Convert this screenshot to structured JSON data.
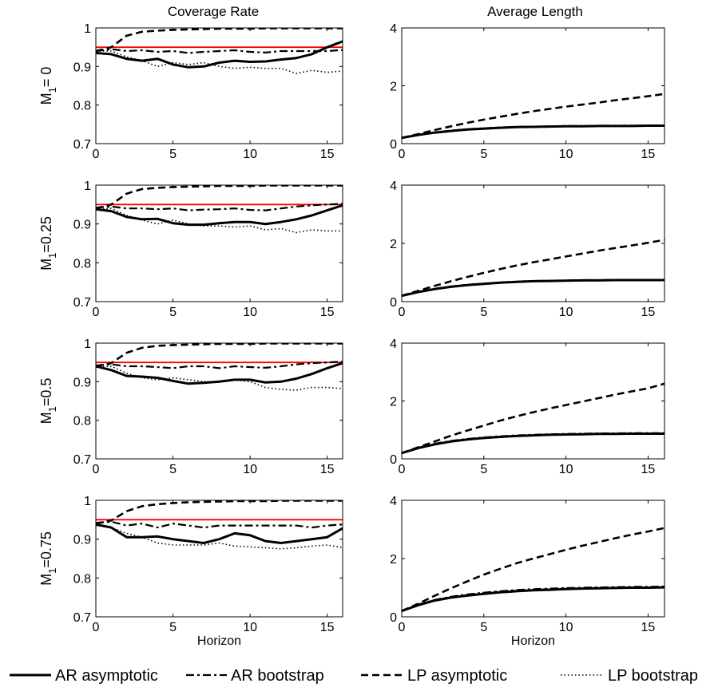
{
  "column_titles": [
    "Coverage Rate",
    "Average Length"
  ],
  "row_labels": [
    {
      "main": "M",
      "sub": "1",
      "rest": "= 0"
    },
    {
      "main": "M",
      "sub": "1",
      "rest": "=0.25"
    },
    {
      "main": "M",
      "sub": "1",
      "rest": "=0.5"
    },
    {
      "main": "M",
      "sub": "1",
      "rest": "=0.75"
    }
  ],
  "xlabel": "Horizon",
  "legend": {
    "placement": "bottom",
    "entries": [
      {
        "label": "AR asymptotic",
        "style": "solid"
      },
      {
        "label": "AR bootstrap",
        "style": "dashdot"
      },
      {
        "label": "LP asymptotic",
        "style": "dashed"
      },
      {
        "label": "LP bootstrap",
        "style": "dotted"
      }
    ]
  },
  "colors": {
    "nominal_line": "#ff0000",
    "series": "#000000"
  },
  "chart_data": [
    {
      "type": "line",
      "row": 0,
      "col": 0,
      "title": "Coverage Rate",
      "ylabel": "M1= 0",
      "xlabel": "",
      "xlim": [
        0,
        16
      ],
      "ylim": [
        0.7,
        1
      ],
      "xticks": [
        0,
        5,
        10,
        15
      ],
      "yticks": [
        0.7,
        0.8,
        0.9,
        1
      ],
      "xtick_labels": [
        "0",
        "5",
        "10",
        "15"
      ],
      "ytick_labels": [
        "0.7",
        "0.8",
        "0.9",
        "1"
      ],
      "hline": 0.95,
      "x": [
        0,
        1,
        2,
        3,
        4,
        5,
        6,
        7,
        8,
        9,
        10,
        11,
        12,
        13,
        14,
        15,
        16
      ],
      "series": [
        {
          "name": "AR asymptotic",
          "values": [
            0.935,
            0.932,
            0.92,
            0.915,
            0.92,
            0.905,
            0.898,
            0.9,
            0.91,
            0.915,
            0.912,
            0.913,
            0.918,
            0.922,
            0.932,
            0.95,
            0.965
          ]
        },
        {
          "name": "AR bootstrap",
          "values": [
            0.94,
            0.945,
            0.94,
            0.942,
            0.938,
            0.94,
            0.935,
            0.938,
            0.94,
            0.942,
            0.938,
            0.936,
            0.94,
            0.94,
            0.94,
            0.94,
            0.943
          ]
        },
        {
          "name": "LP asymptotic",
          "values": [
            0.94,
            0.95,
            0.98,
            0.99,
            0.993,
            0.995,
            0.996,
            0.997,
            0.998,
            0.998,
            0.998,
            0.999,
            0.999,
            0.999,
            0.999,
            0.999,
            0.999
          ]
        },
        {
          "name": "LP bootstrap",
          "values": [
            0.94,
            0.94,
            0.925,
            0.915,
            0.9,
            0.91,
            0.905,
            0.91,
            0.9,
            0.895,
            0.898,
            0.895,
            0.895,
            0.882,
            0.89,
            0.885,
            0.888
          ]
        }
      ]
    },
    {
      "type": "line",
      "row": 0,
      "col": 1,
      "title": "Average Length",
      "ylabel": "",
      "xlabel": "",
      "xlim": [
        0,
        16
      ],
      "ylim": [
        0,
        4
      ],
      "xticks": [
        0,
        5,
        10,
        15
      ],
      "yticks": [
        0,
        2,
        4
      ],
      "xtick_labels": [
        "0",
        "5",
        "10",
        "15"
      ],
      "ytick_labels": [
        "0",
        "2",
        "4"
      ],
      "x": [
        0,
        1,
        2,
        3,
        4,
        5,
        6,
        7,
        8,
        9,
        10,
        11,
        12,
        13,
        14,
        15,
        16
      ],
      "series": [
        {
          "name": "AR asymptotic",
          "values": [
            0.2,
            0.3,
            0.38,
            0.44,
            0.49,
            0.52,
            0.55,
            0.57,
            0.58,
            0.59,
            0.6,
            0.6,
            0.61,
            0.61,
            0.61,
            0.62,
            0.62
          ]
        },
        {
          "name": "AR bootstrap",
          "values": [
            0.2,
            0.31,
            0.39,
            0.45,
            0.5,
            0.53,
            0.56,
            0.58,
            0.59,
            0.6,
            0.61,
            0.61,
            0.62,
            0.62,
            0.62,
            0.63,
            0.63
          ]
        },
        {
          "name": "LP asymptotic",
          "values": [
            0.2,
            0.33,
            0.47,
            0.6,
            0.72,
            0.83,
            0.93,
            1.03,
            1.12,
            1.2,
            1.28,
            1.35,
            1.42,
            1.5,
            1.57,
            1.64,
            1.72
          ]
        },
        {
          "name": "LP bootstrap",
          "values": [
            0.2,
            0.31,
            0.4,
            0.46,
            0.51,
            0.54,
            0.57,
            0.59,
            0.6,
            0.61,
            0.61,
            0.62,
            0.62,
            0.62,
            0.63,
            0.63,
            0.63
          ]
        }
      ]
    },
    {
      "type": "line",
      "row": 1,
      "col": 0,
      "title": "",
      "ylabel": "M1=0.25",
      "xlabel": "",
      "xlim": [
        0,
        16
      ],
      "ylim": [
        0.7,
        1
      ],
      "xticks": [
        0,
        5,
        10,
        15
      ],
      "yticks": [
        0.7,
        0.8,
        0.9,
        1
      ],
      "xtick_labels": [
        "0",
        "5",
        "10",
        "15"
      ],
      "ytick_labels": [
        "0.7",
        "0.8",
        "0.9",
        "1"
      ],
      "hline": 0.95,
      "x": [
        0,
        1,
        2,
        3,
        4,
        5,
        6,
        7,
        8,
        9,
        10,
        11,
        12,
        13,
        14,
        15,
        16
      ],
      "series": [
        {
          "name": "AR asymptotic",
          "values": [
            0.938,
            0.933,
            0.918,
            0.912,
            0.913,
            0.902,
            0.898,
            0.898,
            0.902,
            0.905,
            0.905,
            0.9,
            0.905,
            0.912,
            0.922,
            0.935,
            0.948
          ]
        },
        {
          "name": "AR bootstrap",
          "values": [
            0.942,
            0.945,
            0.94,
            0.94,
            0.938,
            0.94,
            0.935,
            0.937,
            0.938,
            0.94,
            0.936,
            0.935,
            0.94,
            0.945,
            0.948,
            0.95,
            0.952
          ]
        },
        {
          "name": "LP asymptotic",
          "values": [
            0.94,
            0.95,
            0.978,
            0.99,
            0.993,
            0.995,
            0.996,
            0.997,
            0.998,
            0.998,
            0.998,
            0.999,
            0.999,
            0.999,
            0.999,
            0.999,
            0.999
          ]
        },
        {
          "name": "LP bootstrap",
          "values": [
            0.938,
            0.94,
            0.922,
            0.91,
            0.9,
            0.91,
            0.9,
            0.895,
            0.895,
            0.892,
            0.895,
            0.885,
            0.888,
            0.878,
            0.885,
            0.882,
            0.882
          ]
        }
      ]
    },
    {
      "type": "line",
      "row": 1,
      "col": 1,
      "title": "",
      "ylabel": "",
      "xlabel": "",
      "xlim": [
        0,
        16
      ],
      "ylim": [
        0,
        4
      ],
      "xticks": [
        0,
        5,
        10,
        15
      ],
      "yticks": [
        0,
        2,
        4
      ],
      "xtick_labels": [
        "0",
        "5",
        "10",
        "15"
      ],
      "ytick_labels": [
        "0",
        "2",
        "4"
      ],
      "x": [
        0,
        1,
        2,
        3,
        4,
        5,
        6,
        7,
        8,
        9,
        10,
        11,
        12,
        13,
        14,
        15,
        16
      ],
      "series": [
        {
          "name": "AR asymptotic",
          "values": [
            0.2,
            0.33,
            0.43,
            0.51,
            0.57,
            0.61,
            0.65,
            0.68,
            0.7,
            0.71,
            0.72,
            0.73,
            0.73,
            0.74,
            0.74,
            0.74,
            0.74
          ]
        },
        {
          "name": "AR bootstrap",
          "values": [
            0.2,
            0.34,
            0.44,
            0.52,
            0.58,
            0.62,
            0.66,
            0.69,
            0.71,
            0.72,
            0.73,
            0.74,
            0.74,
            0.75,
            0.75,
            0.75,
            0.75
          ]
        },
        {
          "name": "LP asymptotic",
          "values": [
            0.2,
            0.37,
            0.54,
            0.7,
            0.85,
            0.99,
            1.12,
            1.24,
            1.35,
            1.45,
            1.55,
            1.65,
            1.75,
            1.84,
            1.93,
            2.02,
            2.12
          ]
        },
        {
          "name": "LP bootstrap",
          "values": [
            0.2,
            0.34,
            0.45,
            0.53,
            0.59,
            0.63,
            0.67,
            0.69,
            0.71,
            0.72,
            0.73,
            0.74,
            0.74,
            0.75,
            0.75,
            0.75,
            0.75
          ]
        }
      ]
    },
    {
      "type": "line",
      "row": 2,
      "col": 0,
      "title": "",
      "ylabel": "M1=0.5",
      "xlabel": "",
      "xlim": [
        0,
        16
      ],
      "ylim": [
        0.7,
        1
      ],
      "xticks": [
        0,
        5,
        10,
        15
      ],
      "yticks": [
        0.7,
        0.8,
        0.9,
        1
      ],
      "xtick_labels": [
        "0",
        "5",
        "10",
        "15"
      ],
      "ytick_labels": [
        "0.7",
        "0.8",
        "0.9",
        "1"
      ],
      "hline": 0.95,
      "x": [
        0,
        1,
        2,
        3,
        4,
        5,
        6,
        7,
        8,
        9,
        10,
        11,
        12,
        13,
        14,
        15,
        16
      ],
      "series": [
        {
          "name": "AR asymptotic",
          "values": [
            0.94,
            0.93,
            0.915,
            0.913,
            0.91,
            0.902,
            0.895,
            0.897,
            0.9,
            0.905,
            0.905,
            0.898,
            0.9,
            0.908,
            0.92,
            0.935,
            0.948
          ]
        },
        {
          "name": "AR bootstrap",
          "values": [
            0.942,
            0.945,
            0.94,
            0.94,
            0.938,
            0.935,
            0.94,
            0.94,
            0.935,
            0.94,
            0.938,
            0.936,
            0.94,
            0.945,
            0.948,
            0.95,
            0.952
          ]
        },
        {
          "name": "LP asymptotic",
          "values": [
            0.94,
            0.948,
            0.975,
            0.988,
            0.993,
            0.995,
            0.996,
            0.997,
            0.998,
            0.998,
            0.998,
            0.999,
            0.999,
            0.999,
            0.999,
            0.999,
            0.999
          ]
        },
        {
          "name": "LP bootstrap",
          "values": [
            0.938,
            0.94,
            0.922,
            0.91,
            0.905,
            0.91,
            0.905,
            0.9,
            0.9,
            0.905,
            0.9,
            0.885,
            0.88,
            0.878,
            0.885,
            0.885,
            0.882
          ]
        }
      ]
    },
    {
      "type": "line",
      "row": 2,
      "col": 1,
      "title": "",
      "ylabel": "",
      "xlabel": "",
      "xlim": [
        0,
        16
      ],
      "ylim": [
        0,
        4
      ],
      "xticks": [
        0,
        5,
        10,
        15
      ],
      "yticks": [
        0,
        2,
        4
      ],
      "xtick_labels": [
        "0",
        "5",
        "10",
        "15"
      ],
      "ytick_labels": [
        "0",
        "2",
        "4"
      ],
      "x": [
        0,
        1,
        2,
        3,
        4,
        5,
        6,
        7,
        8,
        9,
        10,
        11,
        12,
        13,
        14,
        15,
        16
      ],
      "series": [
        {
          "name": "AR asymptotic",
          "values": [
            0.2,
            0.37,
            0.5,
            0.6,
            0.67,
            0.72,
            0.76,
            0.79,
            0.81,
            0.83,
            0.84,
            0.85,
            0.86,
            0.86,
            0.87,
            0.87,
            0.87
          ]
        },
        {
          "name": "AR bootstrap",
          "values": [
            0.2,
            0.38,
            0.52,
            0.62,
            0.69,
            0.74,
            0.78,
            0.81,
            0.83,
            0.85,
            0.86,
            0.87,
            0.88,
            0.88,
            0.89,
            0.89,
            0.89
          ]
        },
        {
          "name": "LP asymptotic",
          "values": [
            0.2,
            0.4,
            0.6,
            0.8,
            0.98,
            1.15,
            1.32,
            1.47,
            1.61,
            1.74,
            1.86,
            1.98,
            2.1,
            2.22,
            2.33,
            2.44,
            2.6
          ]
        },
        {
          "name": "LP bootstrap",
          "values": [
            0.2,
            0.38,
            0.51,
            0.61,
            0.68,
            0.73,
            0.77,
            0.8,
            0.82,
            0.84,
            0.85,
            0.86,
            0.87,
            0.87,
            0.88,
            0.88,
            0.88
          ]
        }
      ]
    },
    {
      "type": "line",
      "row": 3,
      "col": 0,
      "title": "",
      "ylabel": "M1=0.75",
      "xlabel": "Horizon",
      "xlim": [
        0,
        16
      ],
      "ylim": [
        0.7,
        1
      ],
      "xticks": [
        0,
        5,
        10,
        15
      ],
      "yticks": [
        0.7,
        0.8,
        0.9,
        1
      ],
      "xtick_labels": [
        "0",
        "5",
        "10",
        "15"
      ],
      "ytick_labels": [
        "0.7",
        "0.8",
        "0.9",
        "1"
      ],
      "hline": 0.95,
      "x": [
        0,
        1,
        2,
        3,
        4,
        5,
        6,
        7,
        8,
        9,
        10,
        11,
        12,
        13,
        14,
        15,
        16
      ],
      "series": [
        {
          "name": "AR asymptotic",
          "values": [
            0.938,
            0.93,
            0.905,
            0.905,
            0.907,
            0.9,
            0.895,
            0.89,
            0.9,
            0.915,
            0.91,
            0.895,
            0.89,
            0.895,
            0.9,
            0.905,
            0.928
          ]
        },
        {
          "name": "AR bootstrap",
          "values": [
            0.942,
            0.945,
            0.935,
            0.94,
            0.93,
            0.94,
            0.935,
            0.93,
            0.935,
            0.935,
            0.935,
            0.935,
            0.935,
            0.935,
            0.93,
            0.935,
            0.938
          ]
        },
        {
          "name": "LP asymptotic",
          "values": [
            0.94,
            0.948,
            0.972,
            0.985,
            0.99,
            0.993,
            0.995,
            0.996,
            0.997,
            0.998,
            0.998,
            0.998,
            0.999,
            0.999,
            0.999,
            0.999,
            0.999
          ]
        },
        {
          "name": "LP bootstrap",
          "values": [
            0.935,
            0.93,
            0.915,
            0.905,
            0.89,
            0.885,
            0.885,
            0.885,
            0.89,
            0.882,
            0.88,
            0.878,
            0.875,
            0.878,
            0.882,
            0.885,
            0.878
          ]
        }
      ]
    },
    {
      "type": "line",
      "row": 3,
      "col": 1,
      "title": "",
      "ylabel": "",
      "xlabel": "Horizon",
      "xlim": [
        0,
        16
      ],
      "ylim": [
        0,
        4
      ],
      "xticks": [
        0,
        5,
        10,
        15
      ],
      "yticks": [
        0,
        2,
        4
      ],
      "xtick_labels": [
        "0",
        "5",
        "10",
        "15"
      ],
      "ytick_labels": [
        "0",
        "2",
        "4"
      ],
      "x": [
        0,
        1,
        2,
        3,
        4,
        5,
        6,
        7,
        8,
        9,
        10,
        11,
        12,
        13,
        14,
        15,
        16
      ],
      "series": [
        {
          "name": "AR asymptotic",
          "values": [
            0.2,
            0.4,
            0.56,
            0.66,
            0.73,
            0.79,
            0.84,
            0.88,
            0.91,
            0.93,
            0.95,
            0.97,
            0.98,
            0.99,
            1.0,
            1.0,
            1.01
          ]
        },
        {
          "name": "AR bootstrap",
          "values": [
            0.2,
            0.42,
            0.58,
            0.69,
            0.77,
            0.83,
            0.88,
            0.92,
            0.95,
            0.97,
            0.99,
            1.0,
            1.01,
            1.02,
            1.03,
            1.03,
            1.04
          ]
        },
        {
          "name": "LP asymptotic",
          "values": [
            0.2,
            0.45,
            0.72,
            0.98,
            1.22,
            1.45,
            1.65,
            1.84,
            2.0,
            2.15,
            2.3,
            2.44,
            2.57,
            2.7,
            2.82,
            2.93,
            3.05
          ]
        },
        {
          "name": "LP bootstrap",
          "values": [
            0.2,
            0.42,
            0.58,
            0.69,
            0.76,
            0.82,
            0.87,
            0.91,
            0.94,
            0.96,
            0.98,
            0.99,
            1.0,
            1.01,
            1.02,
            1.02,
            1.03
          ]
        }
      ]
    }
  ]
}
